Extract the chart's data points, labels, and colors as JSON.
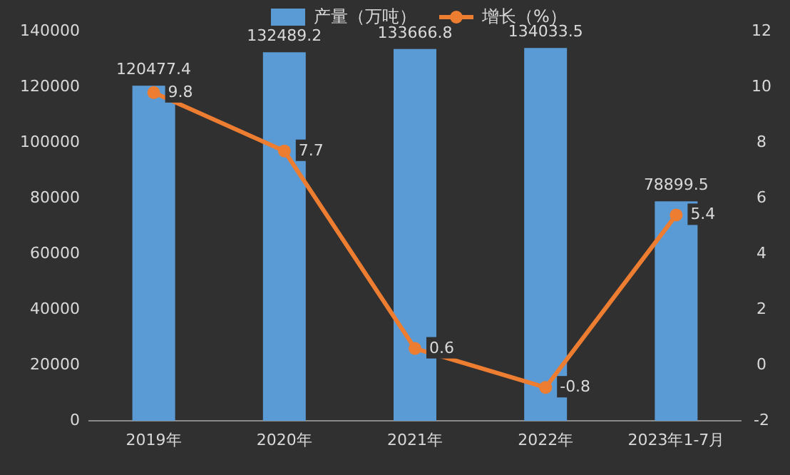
{
  "chart_data": {
    "type": "bar",
    "categories": [
      "2019年",
      "2020年",
      "2021年",
      "2022年",
      "2023年1-7月"
    ],
    "series": [
      {
        "name": "产量（万吨）",
        "color": "#5b9bd5",
        "values": [
          120477.4,
          132489.2,
          133666.8,
          134033.5,
          78899.5
        ]
      },
      {
        "name": "增长（%）",
        "type": "line",
        "axis": "y2",
        "color": "#ed7d31",
        "values": [
          9.8,
          7.7,
          0.6,
          -0.8,
          5.4
        ]
      }
    ],
    "ylim": [
      0,
      140000
    ],
    "yticks": [
      0,
      20000,
      40000,
      60000,
      80000,
      100000,
      120000,
      140000
    ],
    "y2lim": [
      -2,
      12
    ],
    "y2ticks": [
      -2,
      0,
      2,
      4,
      6,
      8,
      10,
      12
    ],
    "legend": "top",
    "marker": "circle",
    "data_labels": true
  }
}
